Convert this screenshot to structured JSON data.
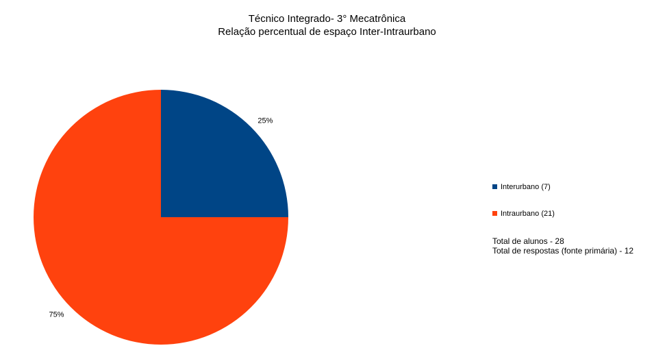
{
  "chart_data": {
    "type": "pie",
    "title": "Técnico Integrado- 3° Mecatrônica",
    "subtitle": "Relação percentual de espaço Inter-Intraurbano",
    "legend_position": "right",
    "slices": [
      {
        "name": "Interurbano (7)",
        "value": 7,
        "percent_label": "25%",
        "color": "#004586"
      },
      {
        "name": "Intraurbano (21)",
        "value": 21,
        "percent_label": "75%",
        "color": "#ff420e"
      }
    ],
    "notes": [
      "Total de alunos - 28",
      "Total de respostas (fonte primária) - 12"
    ]
  }
}
